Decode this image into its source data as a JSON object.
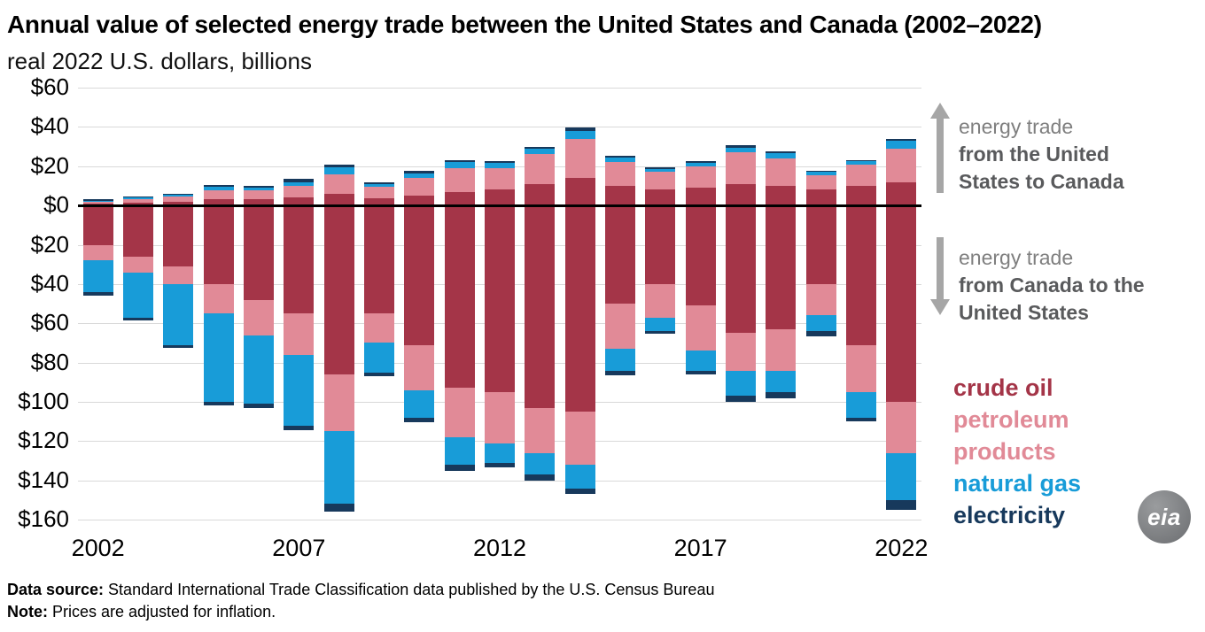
{
  "chart_data": {
    "type": "bar",
    "subtype": "diverging-stacked",
    "title": "Annual value of selected energy trade between the United States and Canada (2002–2022)",
    "subtitle": "real 2022 U.S. dollars, billions",
    "unit": "billion real 2022 U.S. dollars",
    "years": [
      2002,
      2003,
      2004,
      2005,
      2006,
      2007,
      2008,
      2009,
      2010,
      2011,
      2012,
      2013,
      2014,
      2015,
      2016,
      2017,
      2018,
      2019,
      2020,
      2021,
      2022
    ],
    "x_tick_years": [
      2002,
      2007,
      2012,
      2017,
      2022
    ],
    "ylim": [
      -164,
      60
    ],
    "y_ticks": [
      60,
      40,
      20,
      0,
      -20,
      -40,
      -60,
      -80,
      -100,
      -120,
      -140,
      -160
    ],
    "y_tick_labels": [
      "$60",
      "$40",
      "$20",
      "$0",
      "$20",
      "$40",
      "$60",
      "$80",
      "$100",
      "$120",
      "$140",
      "$160"
    ],
    "positive_direction_label": "energy trade from the United States to Canada",
    "negative_direction_label": "energy trade from Canada to the United States",
    "grid": true,
    "legend_position": "right",
    "series": [
      {
        "id": "crude_oil",
        "label": "crude oil",
        "color": "#a43548",
        "us_to_canada": [
          1.0,
          1.5,
          2.0,
          3.0,
          3.0,
          4.0,
          6.0,
          3.5,
          5.0,
          7.0,
          8.0,
          11.0,
          14.0,
          10.0,
          8.0,
          9.0,
          11.0,
          10.0,
          8.0,
          10.0,
          12.0
        ],
        "canada_to_us": [
          20,
          26,
          31,
          40,
          48,
          55,
          86,
          55,
          71,
          93,
          95,
          103,
          105,
          50,
          40,
          51,
          65,
          63,
          40,
          71,
          100
        ]
      },
      {
        "id": "petroleum_products",
        "label": "petroleum products",
        "color": "#e18a97",
        "us_to_canada": [
          1.0,
          1.5,
          2.5,
          4.5,
          4.5,
          6.0,
          10.0,
          6.0,
          9.0,
          12.0,
          11.0,
          15.0,
          20.0,
          12.0,
          9.0,
          11.0,
          16.0,
          14.0,
          7.5,
          11.0,
          17.0
        ],
        "canada_to_us": [
          8,
          8,
          9,
          15,
          18,
          21,
          29,
          15,
          23,
          25,
          26,
          23,
          27,
          23,
          17,
          23,
          19,
          21,
          16,
          24,
          26
        ]
      },
      {
        "id": "natural_gas",
        "label": "natural gas",
        "color": "#189cd8",
        "us_to_canada": [
          0.5,
          1.0,
          1.0,
          2.0,
          1.5,
          2.0,
          3.5,
          1.5,
          2.5,
          3.0,
          2.5,
          3.0,
          4.0,
          2.5,
          1.5,
          1.5,
          2.5,
          2.5,
          1.5,
          1.5,
          4.0
        ],
        "canada_to_us": [
          16,
          23,
          31,
          45,
          35,
          36,
          37,
          15,
          14,
          14,
          10,
          11,
          12,
          11,
          7,
          10,
          13,
          11,
          8,
          13,
          24
        ]
      },
      {
        "id": "electricity",
        "label": "electricity",
        "color": "#17395c",
        "us_to_canada": [
          0.5,
          0.5,
          0.5,
          1.0,
          1.0,
          1.5,
          1.5,
          1.0,
          1.0,
          1.0,
          1.0,
          1.0,
          1.5,
          1.0,
          1.0,
          1.0,
          1.0,
          1.0,
          0.5,
          0.5,
          1.0
        ],
        "canada_to_us": [
          2,
          1.5,
          1.5,
          2,
          2,
          2.5,
          4,
          2,
          2.5,
          3,
          2.5,
          3,
          3,
          2.5,
          1.5,
          2,
          3,
          3,
          2.5,
          2,
          5
        ]
      }
    ]
  },
  "annotations": {
    "us_to_canada": {
      "line1": "energy trade",
      "line2": "from the United States to Canada"
    },
    "canada_to_us": {
      "line1": "energy trade",
      "line2": "from Canada to the United States"
    }
  },
  "logo": {
    "text": "eia"
  },
  "footer": {
    "source_label": "Data source:",
    "source_text": " Standard International Trade Classification data published by the U.S. Census Bureau",
    "note_label": "Note:",
    "note_text": " Prices are adjusted for inflation."
  }
}
